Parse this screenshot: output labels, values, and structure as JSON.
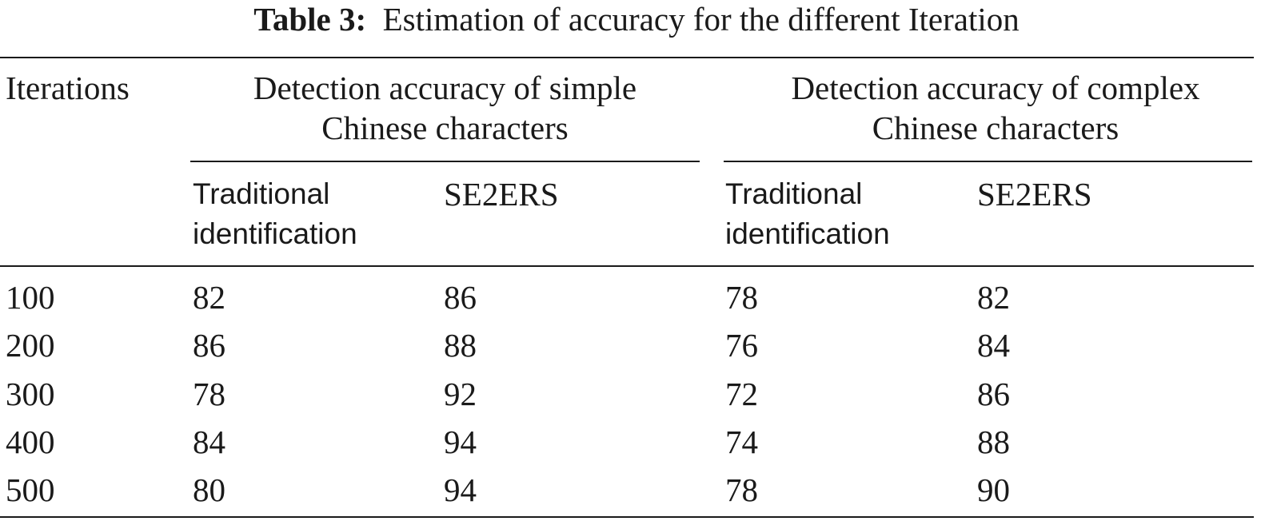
{
  "table": {
    "caption_label": "Table 3:",
    "caption_text": "Estimation of accuracy for the different Iteration",
    "header": {
      "iterations": "Iterations",
      "group_simple": [
        "Detection accuracy of simple",
        "Chinese characters"
      ],
      "group_complex": [
        "Detection accuracy of complex",
        "Chinese characters"
      ],
      "sub_traditional": [
        "Traditional",
        "identification"
      ],
      "sub_se2ers": "SE2ERS"
    },
    "rows": [
      [
        "100",
        "82",
        "86",
        "78",
        "82"
      ],
      [
        "200",
        "86",
        "88",
        "76",
        "84"
      ],
      [
        "300",
        "78",
        "92",
        "72",
        "86"
      ],
      [
        "400",
        "84",
        "94",
        "74",
        "88"
      ],
      [
        "500",
        "80",
        "94",
        "78",
        "90"
      ]
    ]
  }
}
